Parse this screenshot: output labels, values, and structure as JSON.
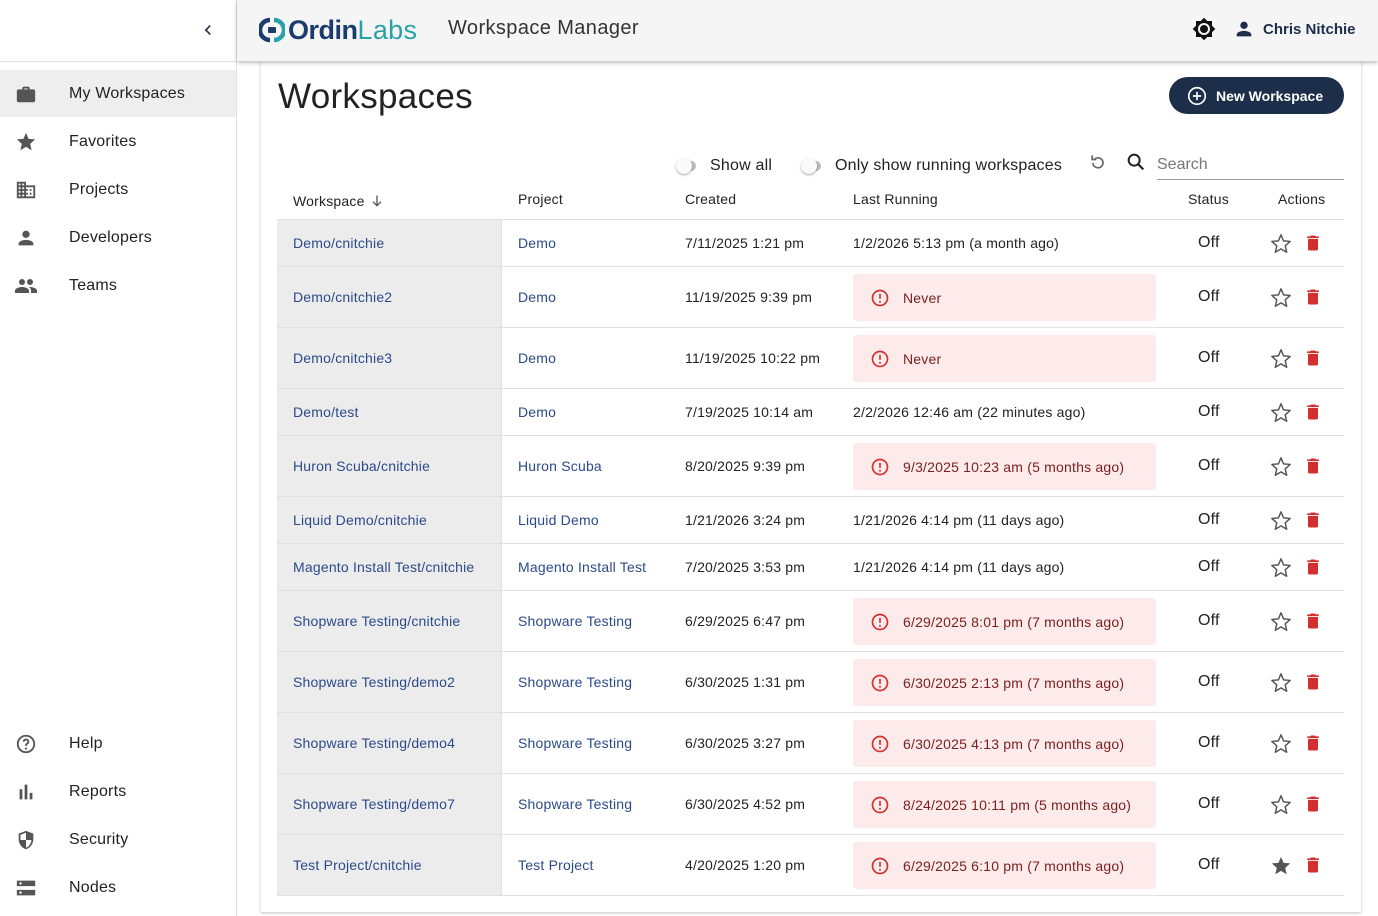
{
  "header": {
    "brand_ordin": "Ordin",
    "brand_labs": "Labs",
    "app_title": "Workspace Manager",
    "user_name": "Chris Nitchie"
  },
  "sidebar": {
    "nav": [
      {
        "label": "My Workspaces",
        "icon": "briefcase-icon",
        "active": true
      },
      {
        "label": "Favorites",
        "icon": "star-icon"
      },
      {
        "label": "Projects",
        "icon": "building-icon"
      },
      {
        "label": "Developers",
        "icon": "person-icon"
      },
      {
        "label": "Teams",
        "icon": "group-icon"
      }
    ],
    "bottom": [
      {
        "label": "Help",
        "icon": "help-circle-icon"
      },
      {
        "label": "Reports",
        "icon": "bar-chart-icon"
      },
      {
        "label": "Security",
        "icon": "shield-icon"
      },
      {
        "label": "Nodes",
        "icon": "storage-icon"
      }
    ]
  },
  "main": {
    "title": "Workspaces",
    "new_button": "New Workspace",
    "toggle_show_all": "Show all",
    "toggle_running": "Only show running workspaces",
    "search_placeholder": "Search",
    "columns": [
      "Workspace",
      "Project",
      "Created",
      "Last Running",
      "Status",
      "Actions"
    ],
    "rows": [
      {
        "workspace": "Demo/cnitchie",
        "project": "Demo",
        "created": "7/11/2025 1:21 pm",
        "last_running": "1/2/2026 5:13 pm (a month ago)",
        "warn": false,
        "status": "Off",
        "favorite": false
      },
      {
        "workspace": "Demo/cnitchie2",
        "project": "Demo",
        "created": "11/19/2025 9:39 pm",
        "last_running": "Never",
        "warn": true,
        "status": "Off",
        "favorite": false
      },
      {
        "workspace": "Demo/cnitchie3",
        "project": "Demo",
        "created": "11/19/2025 10:22 pm",
        "last_running": "Never",
        "warn": true,
        "status": "Off",
        "favorite": false
      },
      {
        "workspace": "Demo/test",
        "project": "Demo",
        "created": "7/19/2025 10:14 am",
        "last_running": "2/2/2026 12:46 am (22 minutes ago)",
        "warn": false,
        "status": "Off",
        "favorite": false
      },
      {
        "workspace": "Huron Scuba/cnitchie",
        "project": "Huron Scuba",
        "created": "8/20/2025 9:39 pm",
        "last_running": "9/3/2025 10:23 am (5 months ago)",
        "warn": true,
        "status": "Off",
        "favorite": false
      },
      {
        "workspace": "Liquid Demo/cnitchie",
        "project": "Liquid Demo",
        "created": "1/21/2026 3:24 pm",
        "last_running": "1/21/2026 4:14 pm (11 days ago)",
        "warn": false,
        "status": "Off",
        "favorite": false
      },
      {
        "workspace": "Magento Install Test/cnitchie",
        "project": "Magento Install Test",
        "created": "7/20/2025 3:53 pm",
        "last_running": "1/21/2026 4:14 pm (11 days ago)",
        "warn": false,
        "status": "Off",
        "favorite": false
      },
      {
        "workspace": "Shopware Testing/cnitchie",
        "project": "Shopware Testing",
        "created": "6/29/2025 6:47 pm",
        "last_running": "6/29/2025 8:01 pm (7 months ago)",
        "warn": true,
        "status": "Off",
        "favorite": false
      },
      {
        "workspace": "Shopware Testing/demo2",
        "project": "Shopware Testing",
        "created": "6/30/2025 1:31 pm",
        "last_running": "6/30/2025 2:13 pm (7 months ago)",
        "warn": true,
        "status": "Off",
        "favorite": false
      },
      {
        "workspace": "Shopware Testing/demo4",
        "project": "Shopware Testing",
        "created": "6/30/2025 3:27 pm",
        "last_running": "6/30/2025 4:13 pm (7 months ago)",
        "warn": true,
        "status": "Off",
        "favorite": false
      },
      {
        "workspace": "Shopware Testing/demo7",
        "project": "Shopware Testing",
        "created": "6/30/2025 4:52 pm",
        "last_running": "8/24/2025 10:11 pm (5 months ago)",
        "warn": true,
        "status": "Off",
        "favorite": false
      },
      {
        "workspace": "Test Project/cnitchie",
        "project": "Test Project",
        "created": "4/20/2025 1:20 pm",
        "last_running": "6/29/2025 6:10 pm (7 months ago)",
        "warn": true,
        "status": "Off",
        "favorite": true
      }
    ]
  },
  "colors": {
    "brand_dark": "#1c3c6e",
    "brand_teal": "#2aa0a8",
    "button_navy": "#1c2e4a",
    "link": "#2b4a8a",
    "warn_bg": "#fdeaea",
    "warn_icon": "#d32f2f",
    "delete_red": "#d32f2f"
  }
}
